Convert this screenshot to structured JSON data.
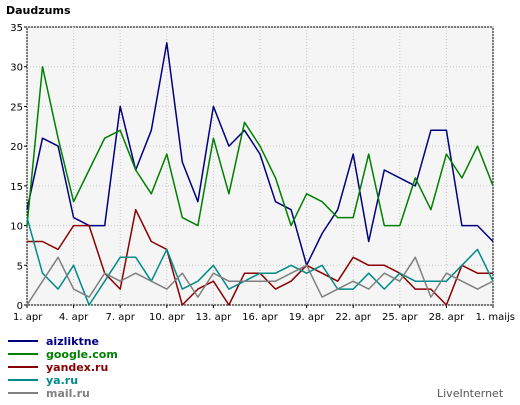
{
  "chart_data": {
    "type": "line",
    "title": "Daudzums",
    "xlabel": "",
    "ylabel": "",
    "ylim": [
      0,
      35
    ],
    "yticks": [
      0,
      5,
      10,
      15,
      20,
      25,
      30,
      35
    ],
    "grid": true,
    "legend_placement": "bottom-left",
    "x": [
      "1. apr",
      "2. apr",
      "3. apr",
      "4. apr",
      "5. apr",
      "6. apr",
      "7. apr",
      "8. apr",
      "9. apr",
      "10. apr",
      "11. apr",
      "12. apr",
      "13. apr",
      "14. apr",
      "15. apr",
      "16. apr",
      "17. apr",
      "18. apr",
      "19. apr",
      "20. apr",
      "21. apr",
      "22. apr",
      "23. apr",
      "24. apr",
      "25. apr",
      "26. apr",
      "27. apr",
      "28. apr",
      "29. apr",
      "30. apr",
      "1. maijs"
    ],
    "xticks": [
      "1. apr",
      "4. apr",
      "7. apr",
      "10. apr",
      "13. apr",
      "16. apr",
      "19. apr",
      "22. apr",
      "25. apr",
      "28. apr",
      "1. maijs"
    ],
    "series": [
      {
        "name": "aizliktne",
        "color": "#000080",
        "values": [
          12,
          21,
          20,
          11,
          10,
          10,
          25,
          17,
          22,
          33,
          18,
          13,
          25,
          20,
          22,
          19,
          13,
          12,
          5,
          9,
          12,
          19,
          8,
          17,
          16,
          15,
          22,
          22,
          10,
          10,
          8
        ]
      },
      {
        "name": "google.com",
        "color": "#008000",
        "values": [
          10,
          30,
          21,
          13,
          17,
          21,
          22,
          17,
          14,
          19,
          11,
          10,
          21,
          14,
          23,
          20,
          16,
          10,
          14,
          13,
          11,
          11,
          19,
          10,
          10,
          16,
          12,
          19,
          16,
          20,
          15
        ]
      },
      {
        "name": "yandex.ru",
        "color": "#8b0000",
        "values": [
          8,
          8,
          7,
          10,
          10,
          4,
          2,
          12,
          8,
          7,
          0,
          2,
          3,
          0,
          4,
          4,
          2,
          3,
          5,
          4,
          3,
          6,
          5,
          5,
          4,
          2,
          2,
          0,
          5,
          4,
          4
        ]
      },
      {
        "name": "ya.ru",
        "color": "#008b8b",
        "values": [
          11,
          4,
          2,
          5,
          0,
          3,
          6,
          6,
          3,
          7,
          2,
          3,
          5,
          2,
          3,
          4,
          4,
          5,
          4,
          5,
          2,
          2,
          4,
          2,
          4,
          3,
          3,
          3,
          5,
          7,
          3
        ]
      },
      {
        "name": "mail.ru",
        "color": "#808080",
        "values": [
          0,
          3,
          6,
          2,
          1,
          4,
          3,
          4,
          3,
          2,
          4,
          1,
          4,
          3,
          3,
          3,
          3,
          4,
          5,
          1,
          2,
          3,
          2,
          4,
          3,
          6,
          1,
          4,
          3,
          2,
          3
        ]
      }
    ]
  },
  "branding": {
    "text": "LiveInternet"
  }
}
